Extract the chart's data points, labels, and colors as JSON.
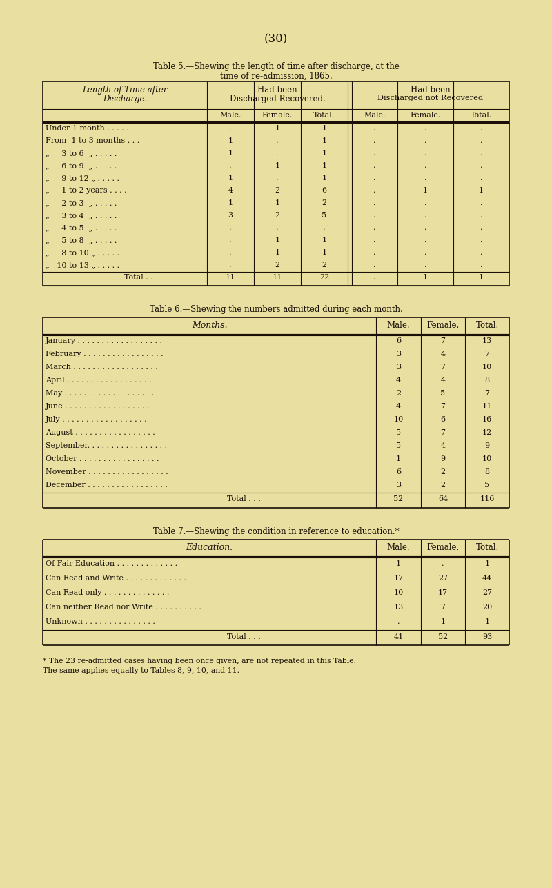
{
  "page_number": "(30)",
  "bg_color": "#e8dfa0",
  "text_color": "#1a1008",
  "t5_title1": "Table 5.—Shewing the length of time after discharge, at the",
  "t5_title2": "time of re-admission, 1865.",
  "t5_header_left": "Length of Time after\nDischarge.",
  "t5_header_rec1": "Had been",
  "t5_header_rec2": "Discharged Recovered.",
  "t5_header_notrec1": "Had been",
  "t5_header_notrec2": "Discharged not Recovered",
  "t5_subheaders": [
    "Male.",
    "Female.",
    "Total.",
    "Male.",
    "Female.",
    "Total."
  ],
  "t5_rows": [
    [
      "Under 1 month . . . . .",
      ".",
      "1",
      "1",
      ".",
      ".",
      "."
    ],
    [
      "From  1 to 3 months . . .",
      "1",
      ".",
      "1",
      ".",
      ".",
      "."
    ],
    [
      "„     3 to 6  „ . . . . .",
      "1",
      ".",
      "1",
      ".",
      ".",
      "."
    ],
    [
      "„     6 to 9  „ . . . . .",
      ".",
      "1",
      "1",
      ".",
      ".",
      "."
    ],
    [
      "„     9 to 12 „ . . . . .",
      "1",
      ".",
      "1",
      ".",
      ".",
      "."
    ],
    [
      "„     1 to 2 years . . . .",
      "4",
      "2",
      "6",
      ".",
      "1",
      "1"
    ],
    [
      "„     2 to 3  „ . . . . .",
      "1",
      "1",
      "2",
      ".",
      ".",
      "."
    ],
    [
      "„     3 to 4  „ . . . . .",
      "3",
      "2",
      "5",
      ".",
      ".",
      "."
    ],
    [
      "„     4 to 5  „ . . . . .",
      ".",
      ".",
      ".",
      ".",
      ".",
      "."
    ],
    [
      "„     5 to 8  „ . . . . .",
      ".",
      "1",
      "1",
      ".",
      ".",
      "."
    ],
    [
      "„     8 to 10 „ . . . . .",
      ".",
      "1",
      "1",
      ".",
      ".",
      "."
    ],
    [
      "„   10 to 13 „ . . . . .",
      ".",
      "2",
      "2",
      ".",
      ".",
      "."
    ]
  ],
  "t5_total": [
    "Total . .",
    "11",
    "11",
    "22",
    ".",
    "1",
    "1"
  ],
  "t6_title": "Table 6.—Shewing the numbers admitted during each month.",
  "t6_header": "Months.",
  "t6_subheaders": [
    "Male.",
    "Female.",
    "Total."
  ],
  "t6_rows": [
    [
      "January . . . . . . . . . . . . . . . . . .",
      "6",
      "7",
      "13"
    ],
    [
      "February . . . . . . . . . . . . . . . . .",
      "3",
      "4",
      "7"
    ],
    [
      "March . . . . . . . . . . . . . . . . . .",
      "3",
      "7",
      "10"
    ],
    [
      "April . . . . . . . . . . . . . . . . . .",
      "4",
      "4",
      "8"
    ],
    [
      "May . . . . . . . . . . . . . . . . . . .",
      "2",
      "5",
      "7"
    ],
    [
      "June . . . . . . . . . . . . . . . . . .",
      "4",
      "7",
      "11"
    ],
    [
      "July . . . . . . . . . . . . . . . . . .",
      "10",
      "6",
      "16"
    ],
    [
      "August . . . . . . . . . . . . . . . . .",
      "5",
      "7",
      "12"
    ],
    [
      "September. . . . . . . . . . . . . . . . .",
      "5",
      "4",
      "9"
    ],
    [
      "October . . . . . . . . . . . . . . . . .",
      "1",
      "9",
      "10"
    ],
    [
      "November . . . . . . . . . . . . . . . . .",
      "6",
      "2",
      "8"
    ],
    [
      "December . . . . . . . . . . . . . . . . .",
      "3",
      "2",
      "5"
    ]
  ],
  "t6_total": [
    "Total . . .",
    "52",
    "64",
    "116"
  ],
  "t7_title": "Table 7.—Shewing the condition in reference to education.*",
  "t7_header": "Education.",
  "t7_subheaders": [
    "Male.",
    "Female.",
    "Total."
  ],
  "t7_rows": [
    [
      "Of Fair Education . . . . . . . . . . . . .",
      "1",
      ".",
      "1"
    ],
    [
      "Can Read and Write . . . . . . . . . . . . .",
      "17",
      "27",
      "44"
    ],
    [
      "Can Read only . . . . . . . . . . . . . .",
      "10",
      "17",
      "27"
    ],
    [
      "Can neither Read nor Write . . . . . . . . . .",
      "13",
      "7",
      "20"
    ],
    [
      "Unknown . . . . . . . . . . . . . . .",
      ".",
      "1",
      "1"
    ]
  ],
  "t7_total": [
    "Total . . .",
    "41",
    "52",
    "93"
  ],
  "footnote1": "* The 23 re-admitted cases having been once given, are not repeated in this Table.",
  "footnote2": "The same applies equally to Tables 8, 9, 10, and 11."
}
